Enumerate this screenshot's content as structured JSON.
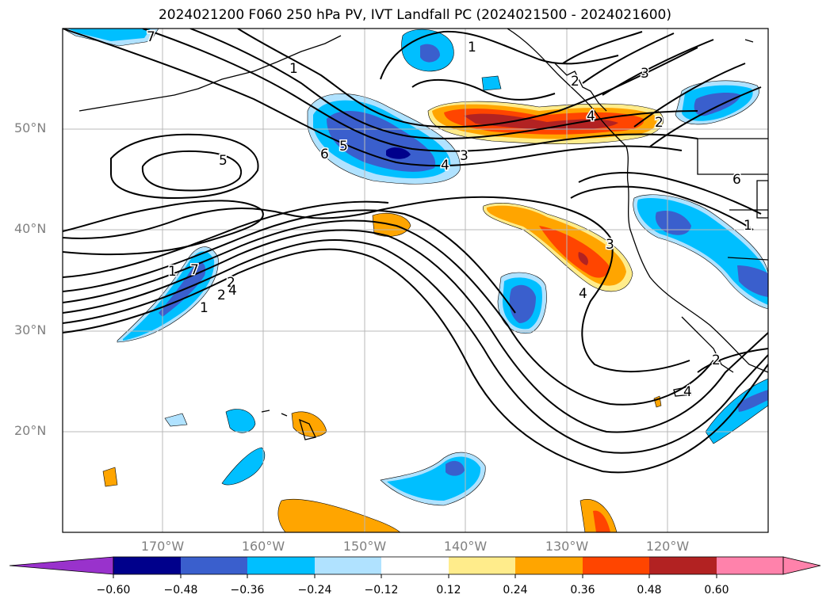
{
  "title": "2024021200 F060 250 hPa PV, IVT Landfall PC (2024021500 - 2024021600)",
  "map": {
    "lat_labels": [
      "50°N",
      "40°N",
      "30°N",
      "20°N"
    ],
    "lon_labels": [
      "170°W",
      "160°W",
      "150°W",
      "140°W",
      "130°W",
      "120°W"
    ],
    "contour_labels": [
      "7",
      "1",
      "1",
      "2",
      "3",
      "2",
      "5",
      "6",
      "5",
      "4",
      "3",
      "4",
      "2",
      "1",
      "1",
      "2",
      "3",
      "4",
      "1",
      "2",
      "6",
      "4",
      "4",
      "7"
    ],
    "shading_colors": {
      "neg_060": "#9932cc",
      "neg_048": "#00008b",
      "neg_036": "#3a5fcd",
      "neg_024": "#00bfff",
      "neg_012": "#b0e2ff",
      "pos_012": "#ffec8b",
      "pos_024": "#ffa500",
      "pos_036": "#ff4500",
      "pos_048": "#b22222",
      "pos_060": "#ff82ab"
    }
  },
  "colorbar": {
    "ticks": [
      "−0.60",
      "−0.48",
      "−0.36",
      "−0.24",
      "−0.12",
      "0.12",
      "0.24",
      "0.36",
      "0.48",
      "0.60"
    ],
    "colors": [
      "#9932cc",
      "#00008b",
      "#3a5fcd",
      "#00bfff",
      "#b0e2ff",
      "#ffffff",
      "#ffec8b",
      "#ffa500",
      "#ff4500",
      "#b22222",
      "#ff82ab"
    ]
  }
}
